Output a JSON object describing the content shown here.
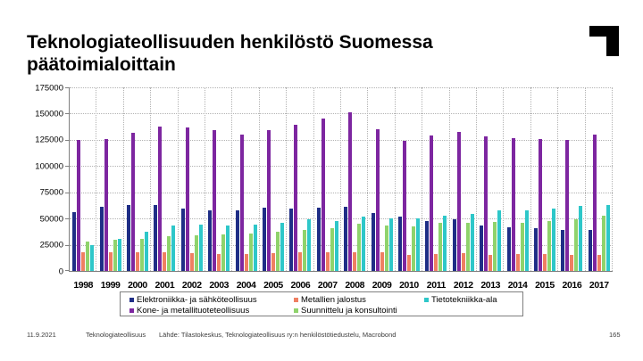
{
  "slide": {
    "footer": {
      "date": "11.9.2021",
      "org": "Teknologiateollisuus",
      "source": "Lähde: Tilastokeskus, Teknologiateollisuus ry:n henkilöstötiedustelu, Macrobond",
      "page": "165"
    },
    "logo_name": "teknologiateollisuus-corner-logo"
  },
  "chart_data": {
    "type": "bar",
    "title": "Teknologiateollisuuden henkilöstö Suomessa päätoimialoittain",
    "categories": [
      "1998",
      "1999",
      "2000",
      "2001",
      "2002",
      "2003",
      "2004",
      "2005",
      "2006",
      "2007",
      "2008",
      "2009",
      "2010",
      "2011",
      "2012",
      "2013",
      "2014",
      "2015",
      "2016",
      "2017"
    ],
    "series": [
      {
        "name": "Elektroniikka- ja sähköteollisuus",
        "color": "#1f2e86",
        "values": [
          56000,
          61000,
          62500,
          63000,
          59500,
          57500,
          58000,
          60000,
          59500,
          60500,
          61500,
          55000,
          51500,
          47500,
          49000,
          43500,
          41500,
          41000,
          39500,
          39000
        ]
      },
      {
        "name": "Kone- ja metallituoteteollisuus",
        "color": "#7d26a0",
        "values": [
          124500,
          126000,
          131500,
          137500,
          137000,
          134500,
          130000,
          134000,
          139000,
          145500,
          151000,
          135500,
          124000,
          129000,
          132500,
          128500,
          126500,
          126000,
          125000,
          130000
        ]
      },
      {
        "name": "Metallien jalostus",
        "color": "#ef7f62",
        "values": [
          18000,
          18000,
          18000,
          18000,
          17000,
          16000,
          16000,
          17000,
          17500,
          17500,
          18000,
          17500,
          15500,
          16500,
          17000,
          15500,
          16000,
          16000,
          15500,
          15000
        ]
      },
      {
        "name": "Suunnittelu ja konsultointi",
        "color": "#8fd36c",
        "values": [
          28000,
          29500,
          31000,
          33500,
          34000,
          34500,
          35500,
          37000,
          39000,
          41000,
          45000,
          43500,
          42500,
          45500,
          46000,
          46500,
          46000,
          48000,
          49500,
          52500
        ]
      },
      {
        "name": "Tietotekniikka-ala",
        "color": "#2ec7c9",
        "values": [
          25000,
          31000,
          37000,
          43500,
          44500,
          43500,
          44000,
          45500,
          49500,
          48000,
          51500,
          50000,
          50000,
          52500,
          54000,
          57500,
          58000,
          59500,
          62000,
          62500
        ]
      }
    ],
    "ylim": [
      0,
      175000
    ],
    "ytick_step": 25000,
    "grid": true,
    "legend_position": "bottom",
    "legend_rows": [
      [
        "Elektroniikka- ja sähköteollisuus",
        "Metallien jalostus",
        "Tietotekniikka-ala"
      ],
      [
        "Kone- ja metallituoteteollisuus",
        "Suunnittelu ja konsultointi"
      ]
    ],
    "legend_column_offsets": [
      6,
      190,
      336
    ]
  }
}
